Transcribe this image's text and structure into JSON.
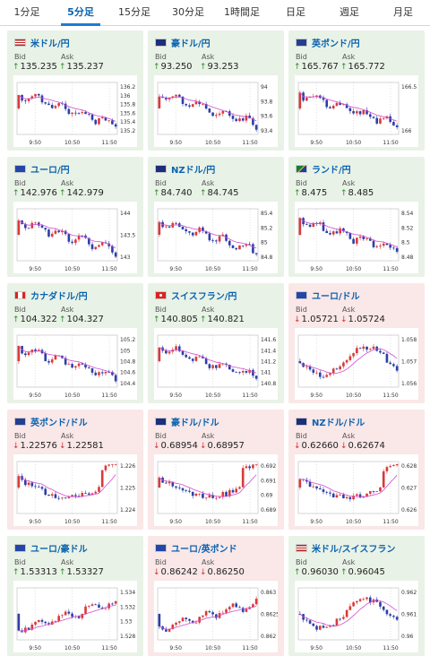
{
  "tabs": [
    "1分足",
    "5分足",
    "15分足",
    "30分足",
    "1時間足",
    "日足",
    "週足",
    "月足"
  ],
  "active_tab": 1,
  "labels": {
    "bid": "Bid",
    "ask": "Ask"
  },
  "colors": {
    "up_arrow": "#2c8a2c",
    "down_arrow": "#d13131",
    "title": "#0a63b0",
    "ma": "#d24bd2",
    "bull": "#d83a3a",
    "bear": "#2b3fa8"
  },
  "x_labels": [
    "9:50",
    "10:50",
    "11:50"
  ],
  "cards": [
    {
      "title": "米ドル/円",
      "dir": "up",
      "bid": "135.235",
      "ask": "135.237",
      "flag": "us-jp-flag-icon",
      "y_ticks": [
        "136.2",
        "136",
        "135.8",
        "135.6",
        "135.4",
        "135.2"
      ],
      "chart_data": {
        "type": "candlestick",
        "trend": "down",
        "ylim": [
          135.15,
          136.25
        ]
      }
    },
    {
      "title": "豪ドル/円",
      "dir": "up",
      "bid": "93.250",
      "ask": "93.253",
      "flag": "au-jp-flag-icon",
      "y_ticks": [
        "94",
        "93.8",
        "93.6",
        "93.4"
      ],
      "chart_data": {
        "type": "candlestick",
        "trend": "down",
        "ylim": [
          93.2,
          94.2
        ]
      }
    },
    {
      "title": "英ポンド/円",
      "dir": "up",
      "bid": "165.767",
      "ask": "165.772",
      "flag": "gb-jp-flag-icon",
      "y_ticks": [
        "166.5",
        "166"
      ],
      "chart_data": {
        "type": "candlestick",
        "trend": "down",
        "ylim": [
          165.7,
          166.9
        ]
      }
    },
    {
      "title": "ユーロ/円",
      "dir": "up",
      "bid": "142.976",
      "ask": "142.979",
      "flag": "eu-jp-flag-icon",
      "y_ticks": [
        "144",
        "143.5",
        "143"
      ],
      "chart_data": {
        "type": "candlestick",
        "trend": "down",
        "ylim": [
          142.9,
          144.1
        ]
      }
    },
    {
      "title": "NZドル/円",
      "dir": "up",
      "bid": "84.740",
      "ask": "84.745",
      "flag": "nz-jp-flag-icon",
      "y_ticks": [
        "85.4",
        "85.2",
        "85",
        "84.8"
      ],
      "chart_data": {
        "type": "candlestick",
        "trend": "down",
        "ylim": [
          84.7,
          85.5
        ]
      }
    },
    {
      "title": "ランド/円",
      "dir": "up",
      "bid": "8.475",
      "ask": "8.485",
      "flag": "za-jp-flag-icon",
      "y_ticks": [
        "8.54",
        "8.52",
        "8.5",
        "8.48"
      ],
      "chart_data": {
        "type": "candlestick",
        "trend": "down",
        "ylim": [
          8.47,
          8.55
        ]
      }
    },
    {
      "title": "カナダドル/円",
      "dir": "up",
      "bid": "104.322",
      "ask": "104.327",
      "flag": "ca-jp-flag-icon",
      "y_ticks": [
        "105.2",
        "105",
        "104.8",
        "104.6",
        "104.4"
      ],
      "chart_data": {
        "type": "candlestick",
        "trend": "down",
        "ylim": [
          104.3,
          105.3
        ]
      }
    },
    {
      "title": "スイスフラン/円",
      "dir": "up",
      "bid": "140.805",
      "ask": "140.821",
      "flag": "ch-jp-flag-icon",
      "y_ticks": [
        "141.6",
        "141.4",
        "141.2",
        "141",
        "140.8"
      ],
      "chart_data": {
        "type": "candlestick",
        "trend": "down",
        "ylim": [
          140.75,
          141.7
        ]
      }
    },
    {
      "title": "ユーロ/ドル",
      "dir": "down",
      "bid": "1.05721",
      "ask": "1.05724",
      "flag": "eu-us-flag-icon",
      "y_ticks": [
        "1.058",
        "1.057",
        "1.056"
      ],
      "chart_data": {
        "type": "candlestick",
        "trend": "wave",
        "ylim": [
          1.0555,
          1.0585
        ]
      }
    },
    {
      "title": "英ポンド/ドル",
      "dir": "down",
      "bid": "1.22576",
      "ask": "1.22581",
      "flag": "gb-us-flag-icon",
      "y_ticks": [
        "1.226",
        "1.225",
        "1.224"
      ],
      "chart_data": {
        "type": "candlestick",
        "trend": "dip",
        "ylim": [
          1.2235,
          1.2265
        ]
      }
    },
    {
      "title": "豪ドル/ドル",
      "dir": "down",
      "bid": "0.68954",
      "ask": "0.68957",
      "flag": "au-us-flag-icon",
      "y_ticks": [
        "0.692",
        "0.691",
        "0.69",
        "0.689"
      ],
      "chart_data": {
        "type": "candlestick",
        "trend": "dip",
        "ylim": [
          0.6885,
          0.6925
        ]
      }
    },
    {
      "title": "NZドル/ドル",
      "dir": "down",
      "bid": "0.62660",
      "ask": "0.62674",
      "flag": "nz-us-flag-icon",
      "y_ticks": [
        "0.628",
        "0.627",
        "0.626"
      ],
      "chart_data": {
        "type": "candlestick",
        "trend": "dip",
        "ylim": [
          0.6255,
          0.6285
        ]
      }
    },
    {
      "title": "ユーロ/豪ドル",
      "dir": "up",
      "bid": "1.53313",
      "ask": "1.53327",
      "flag": "eu-au-flag-icon",
      "y_ticks": [
        "1.534",
        "1.532",
        "1.53",
        "1.528"
      ],
      "chart_data": {
        "type": "candlestick",
        "trend": "up",
        "ylim": [
          1.527,
          1.535
        ]
      }
    },
    {
      "title": "ユーロ/英ポンド",
      "dir": "down",
      "bid": "0.86242",
      "ask": "0.86250",
      "flag": "eu-gb-flag-icon",
      "y_ticks": [
        "0.863",
        "0.8625",
        "0.862"
      ],
      "chart_data": {
        "type": "candlestick",
        "trend": "up",
        "ylim": [
          0.8618,
          0.8633
        ]
      }
    },
    {
      "title": "米ドル/スイスフラン",
      "dir": "up",
      "bid": "0.96030",
      "ask": "0.96045",
      "flag": "us-ch-flag-icon",
      "y_ticks": [
        "0.962",
        "0.961",
        "0.96"
      ],
      "chart_data": {
        "type": "candlestick",
        "trend": "wave",
        "ylim": [
          0.9597,
          0.9627
        ]
      }
    }
  ]
}
